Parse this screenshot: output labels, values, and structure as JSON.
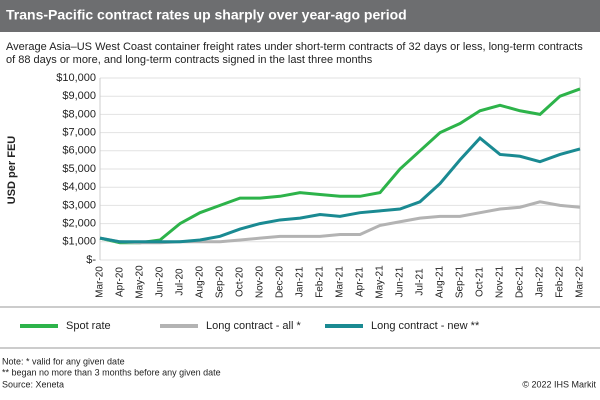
{
  "chart_data": {
    "type": "line",
    "title": "Trans-Pacific contract rates up sharply over year-ago period",
    "subtitle_lines": [
      "Average Asia–US West Coast container freight rates under short-term contracts of 32 days or less, long-term contracts",
      "of 88 days or more, and long-term contracts signed in the last three months"
    ],
    "y_label": "USD per FEU",
    "categories": [
      "Mar-20",
      "Apr-20",
      "May-20",
      "Jun-20",
      "Jul-20",
      "Aug-20",
      "Sep-20",
      "Oct-20",
      "Nov-20",
      "Dec-20",
      "Jan-21",
      "Feb-21",
      "Mar-21",
      "Apr-21",
      "May-21",
      "Jun-21",
      "Jul-21",
      "Aug-21",
      "Sep-21",
      "Oct-21",
      "Nov-21",
      "Dec-21",
      "Jan-22",
      "Feb-22",
      "Mar-22"
    ],
    "series": [
      {
        "name": "Spot rate",
        "color": "#2db34a",
        "values": [
          1200,
          950,
          950,
          1100,
          2000,
          2600,
          3000,
          3400,
          3400,
          3500,
          3700,
          3600,
          3500,
          3500,
          3700,
          5000,
          6000,
          7000,
          7500,
          8200,
          8500,
          8200,
          8000,
          9000,
          9400
        ]
      },
      {
        "name": "Long contract - all *",
        "color": "#b3b3b3",
        "values": [
          1200,
          1000,
          950,
          950,
          1000,
          1000,
          1000,
          1100,
          1200,
          1300,
          1300,
          1300,
          1400,
          1400,
          1900,
          2100,
          2300,
          2400,
          2400,
          2600,
          2800,
          2900,
          3200,
          3000,
          2900
        ]
      },
      {
        "name": "Long contract - new **",
        "color": "#1a8a92",
        "values": [
          1200,
          1000,
          1000,
          1000,
          1000,
          1100,
          1300,
          1700,
          2000,
          2200,
          2300,
          2500,
          2400,
          2600,
          2700,
          2800,
          3200,
          4200,
          5500,
          6700,
          5800,
          5700,
          5400,
          5800,
          6100
        ]
      }
    ],
    "ylim": [
      0,
      10000
    ],
    "yticks": [
      {
        "value": 0,
        "label": "$-"
      },
      {
        "value": 1000,
        "label": "$1,000"
      },
      {
        "value": 2000,
        "label": "$2,000"
      },
      {
        "value": 3000,
        "label": "$3,000"
      },
      {
        "value": 4000,
        "label": "$4,000"
      },
      {
        "value": 5000,
        "label": "$5,000"
      },
      {
        "value": 6000,
        "label": "$6,000"
      },
      {
        "value": 7000,
        "label": "$7,000"
      },
      {
        "value": 8000,
        "label": "$8,000"
      },
      {
        "value": 9000,
        "label": "$9,000"
      },
      {
        "value": 10000,
        "label": "$10,000"
      }
    ],
    "grid": true,
    "notes": [
      "Note: * valid for any given date",
      "** began no more than 3 months before any given date",
      "Source: Xeneta"
    ],
    "copyright": "© 2022 IHS Markit"
  }
}
